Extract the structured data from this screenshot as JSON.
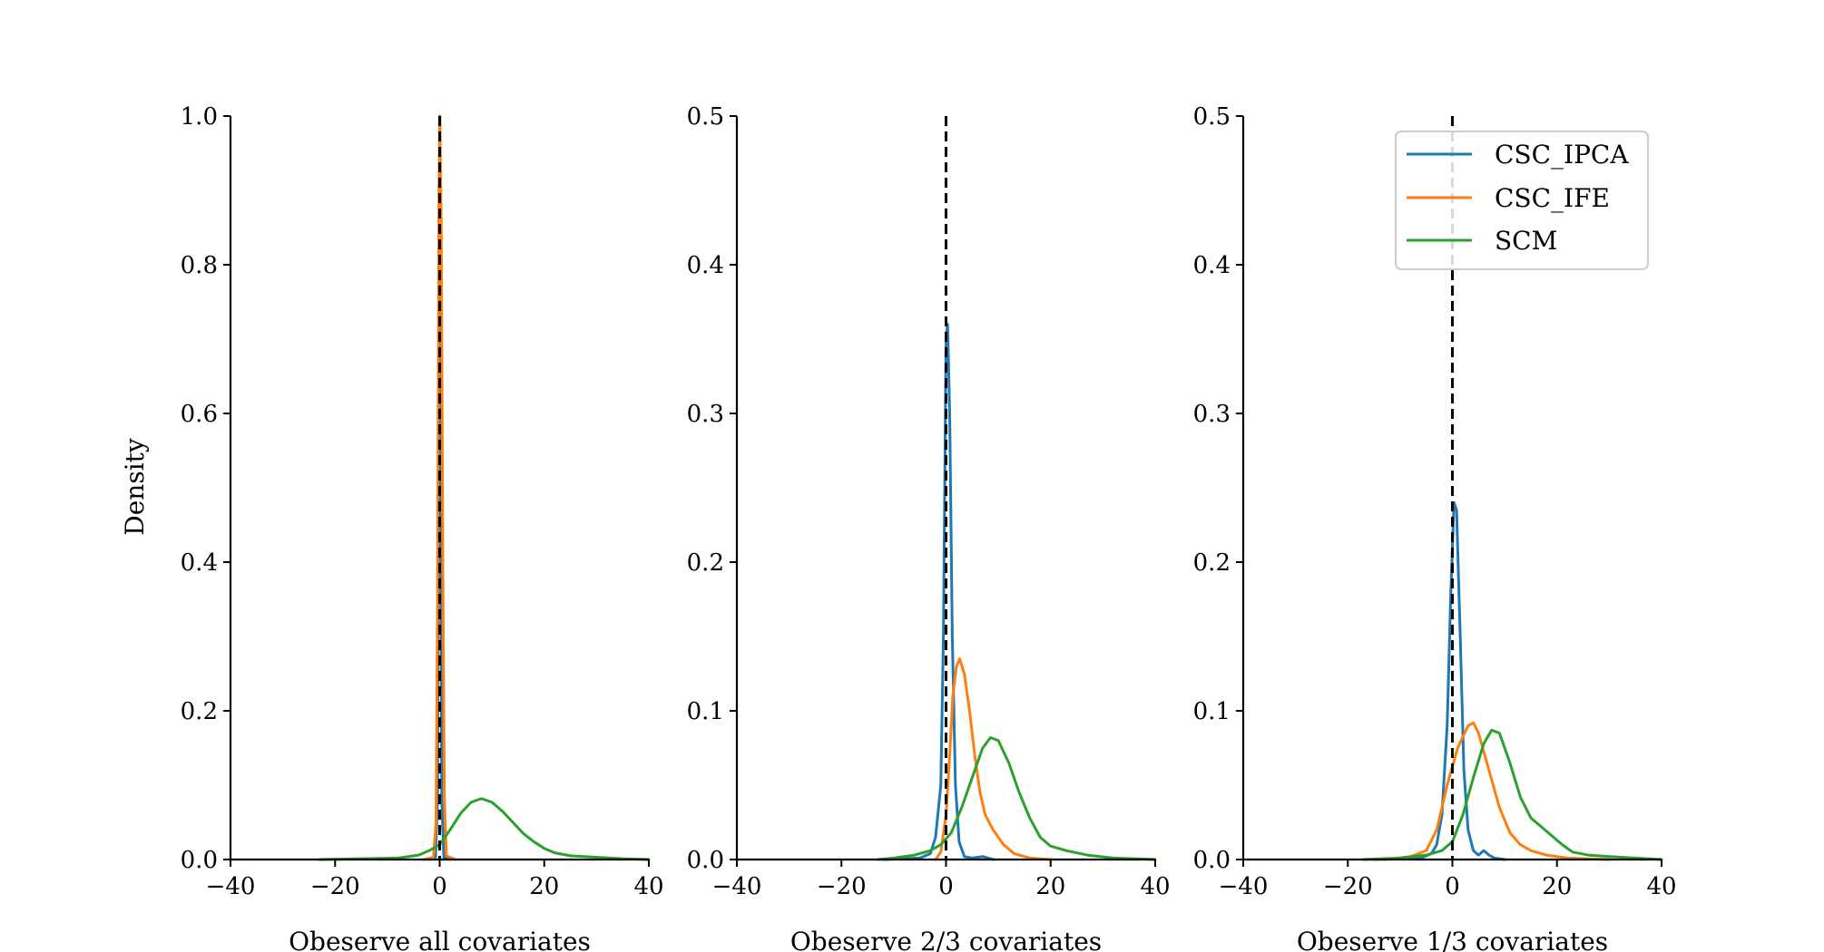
{
  "chart_data": [
    {
      "type": "line",
      "xlabel": "Obeserve all covariates",
      "ylabel": "Density",
      "xlim": [
        -40,
        40
      ],
      "ylim": [
        0,
        1.0
      ],
      "xticks": [
        "−40",
        "−20",
        "0",
        "20",
        "40"
      ],
      "yticks": [
        "0.0",
        "0.2",
        "0.4",
        "0.6",
        "0.8",
        "1.0"
      ],
      "vline": 0,
      "series": [
        {
          "name": "CSC_IPCA",
          "color": "#1f77b4",
          "points": [
            [
              -2,
              0
            ],
            [
              -0.8,
              0.003
            ],
            [
              -0.4,
              0.08
            ],
            [
              -0.15,
              0.6
            ],
            [
              0,
              1.0
            ],
            [
              0.15,
              0.6
            ],
            [
              0.4,
              0.08
            ],
            [
              0.8,
              0.003
            ],
            [
              2,
              0
            ]
          ]
        },
        {
          "name": "CSC_IFE",
          "color": "#ff7f0e",
          "points": [
            [
              -3,
              0
            ],
            [
              -1.2,
              0.003
            ],
            [
              -0.7,
              0.05
            ],
            [
              -0.4,
              0.35
            ],
            [
              -0.15,
              0.9
            ],
            [
              0.05,
              1.0
            ],
            [
              0.3,
              0.85
            ],
            [
              0.6,
              0.4
            ],
            [
              0.9,
              0.08
            ],
            [
              1.3,
              0.005
            ],
            [
              3,
              0
            ]
          ]
        },
        {
          "name": "SCM",
          "color": "#2ca02c",
          "points": [
            [
              -23,
              0.0
            ],
            [
              -15,
              0.001
            ],
            [
              -8,
              0.002
            ],
            [
              -4,
              0.006
            ],
            [
              -2,
              0.012
            ],
            [
              0,
              0.02
            ],
            [
              2,
              0.04
            ],
            [
              4,
              0.062
            ],
            [
              6,
              0.077
            ],
            [
              8,
              0.082
            ],
            [
              10,
              0.077
            ],
            [
              12,
              0.065
            ],
            [
              14,
              0.05
            ],
            [
              16,
              0.035
            ],
            [
              18,
              0.024
            ],
            [
              20,
              0.015
            ],
            [
              22,
              0.009
            ],
            [
              25,
              0.005
            ],
            [
              30,
              0.003
            ],
            [
              35,
              0.001
            ],
            [
              40,
              0.0
            ]
          ]
        }
      ]
    },
    {
      "type": "line",
      "xlabel": "Obeserve 2/3 covariates",
      "ylabel": "",
      "xlim": [
        -40,
        40
      ],
      "ylim": [
        0,
        0.5
      ],
      "xticks": [
        "−40",
        "−20",
        "0",
        "20",
        "40"
      ],
      "yticks": [
        "0.0",
        "0.1",
        "0.2",
        "0.3",
        "0.4",
        "0.5"
      ],
      "vline": 0,
      "series": [
        {
          "name": "CSC_IPCA",
          "color": "#1f77b4",
          "points": [
            [
              -12,
              0
            ],
            [
              -5,
              0.001
            ],
            [
              -3,
              0.004
            ],
            [
              -2,
              0.015
            ],
            [
              -1,
              0.05
            ],
            [
              -0.5,
              0.15
            ],
            [
              0,
              0.35
            ],
            [
              0.3,
              0.36
            ],
            [
              0.7,
              0.3
            ],
            [
              1.2,
              0.15
            ],
            [
              1.8,
              0.05
            ],
            [
              2.5,
              0.012
            ],
            [
              3.5,
              0.002
            ],
            [
              5,
              0.001
            ],
            [
              7,
              0.002
            ],
            [
              9,
              0.0
            ]
          ]
        },
        {
          "name": "CSC_IFE",
          "color": "#ff7f0e",
          "points": [
            [
              -2,
              0
            ],
            [
              -1,
              0.005
            ],
            [
              0,
              0.03
            ],
            [
              0.7,
              0.07
            ],
            [
              1.3,
              0.11
            ],
            [
              2,
              0.13
            ],
            [
              2.6,
              0.135
            ],
            [
              3.5,
              0.125
            ],
            [
              4.5,
              0.1
            ],
            [
              5.5,
              0.07
            ],
            [
              6.5,
              0.045
            ],
            [
              7.5,
              0.03
            ],
            [
              9,
              0.02
            ],
            [
              11,
              0.01
            ],
            [
              13,
              0.004
            ],
            [
              16,
              0.001
            ],
            [
              20,
              0.0
            ]
          ]
        },
        {
          "name": "SCM",
          "color": "#2ca02c",
          "points": [
            [
              -13,
              0.0
            ],
            [
              -10,
              0.001
            ],
            [
              -6,
              0.003
            ],
            [
              -3,
              0.006
            ],
            [
              -1,
              0.01
            ],
            [
              1,
              0.018
            ],
            [
              3,
              0.035
            ],
            [
              5,
              0.055
            ],
            [
              7,
              0.075
            ],
            [
              8.5,
              0.082
            ],
            [
              10,
              0.08
            ],
            [
              12,
              0.065
            ],
            [
              14,
              0.045
            ],
            [
              16,
              0.028
            ],
            [
              18,
              0.015
            ],
            [
              20,
              0.009
            ],
            [
              23,
              0.006
            ],
            [
              27,
              0.003
            ],
            [
              32,
              0.001
            ],
            [
              40,
              0.0
            ]
          ]
        }
      ]
    },
    {
      "type": "line",
      "xlabel": "Obeserve 1/3 covariates",
      "ylabel": "",
      "xlim": [
        -40,
        40
      ],
      "ylim": [
        0,
        0.5
      ],
      "xticks": [
        "−40",
        "−20",
        "0",
        "20",
        "40"
      ],
      "yticks": [
        "0.0",
        "0.1",
        "0.2",
        "0.3",
        "0.4",
        "0.5"
      ],
      "vline": 0,
      "legend_loc": "top-right",
      "series": [
        {
          "name": "CSC_IPCA",
          "color": "#1f77b4",
          "points": [
            [
              -15,
              0
            ],
            [
              -6,
              0.001
            ],
            [
              -4,
              0.004
            ],
            [
              -3,
              0.01
            ],
            [
              -2,
              0.03
            ],
            [
              -1,
              0.09
            ],
            [
              -0.3,
              0.18
            ],
            [
              0.3,
              0.24
            ],
            [
              0.8,
              0.235
            ],
            [
              1.5,
              0.15
            ],
            [
              2.2,
              0.06
            ],
            [
              3,
              0.02
            ],
            [
              4,
              0.006
            ],
            [
              5,
              0.003
            ],
            [
              6,
              0.006
            ],
            [
              7,
              0.003
            ],
            [
              8,
              0.001
            ],
            [
              10,
              0.0
            ]
          ]
        },
        {
          "name": "CSC_IFE",
          "color": "#ff7f0e",
          "points": [
            [
              -13,
              0
            ],
            [
              -8,
              0.002
            ],
            [
              -5,
              0.006
            ],
            [
              -3,
              0.02
            ],
            [
              -1,
              0.05
            ],
            [
              1,
              0.075
            ],
            [
              3,
              0.09
            ],
            [
              4,
              0.092
            ],
            [
              5,
              0.085
            ],
            [
              7,
              0.06
            ],
            [
              9,
              0.035
            ],
            [
              11,
              0.018
            ],
            [
              13,
              0.01
            ],
            [
              15,
              0.006
            ],
            [
              18,
              0.003
            ],
            [
              22,
              0.001
            ],
            [
              30,
              0.0
            ]
          ]
        },
        {
          "name": "SCM",
          "color": "#2ca02c",
          "points": [
            [
              -17,
              0
            ],
            [
              -10,
              0.001
            ],
            [
              -5,
              0.003
            ],
            [
              -2,
              0.006
            ],
            [
              0,
              0.012
            ],
            [
              2,
              0.03
            ],
            [
              4,
              0.055
            ],
            [
              6,
              0.078
            ],
            [
              7.5,
              0.087
            ],
            [
              9,
              0.085
            ],
            [
              11,
              0.065
            ],
            [
              13,
              0.042
            ],
            [
              15,
              0.028
            ],
            [
              17,
              0.022
            ],
            [
              19,
              0.016
            ],
            [
              21,
              0.01
            ],
            [
              23,
              0.005
            ],
            [
              26,
              0.003
            ],
            [
              30,
              0.002
            ],
            [
              35,
              0.001
            ],
            [
              40,
              0.0
            ]
          ]
        }
      ]
    }
  ]
}
